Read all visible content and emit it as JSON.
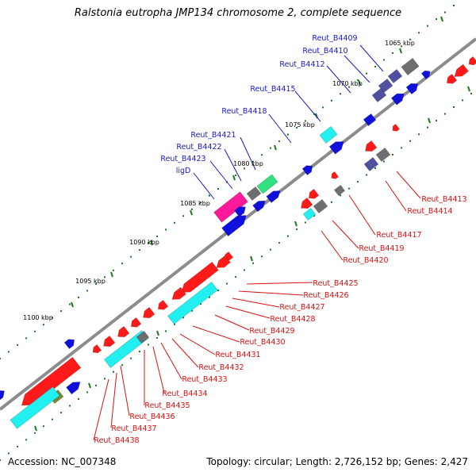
{
  "title": "Ralstonia eutropha JMP134 chromosome 2, complete sequence",
  "footer": {
    "accession": "Accession: NC_007348",
    "summary": "Topology: circular; Length: 2,726,152 bp; Genes: 2,427"
  },
  "colors": {
    "backbone": "#8c8c8c",
    "tick": "#1a7a1a",
    "upper_label": "#1a1acc",
    "lower_label": "#dd1111",
    "red": "#ff1a1a",
    "blue": "#1010dd",
    "cyan": "#22f0f0",
    "slate": "#5050a0",
    "gray": "#6e6e6e",
    "magenta": "#ff1a9a",
    "green": "#33e080",
    "olive": "#778833"
  },
  "kbp_labels": [
    "1065 kbp",
    "1070 kbp",
    "1075 kbp",
    "1080 kbp",
    "1085 kbp",
    "1090 kbp",
    "1095 kbp",
    "1100 kbp"
  ],
  "upper_genes": [
    "Reut_B4409",
    "Reut_B4410",
    "Reut_B4412",
    "Reut_B4415",
    "Reut_B4418",
    "Reut_B4421",
    "Reut_B4422",
    "Reut_B4423",
    "ligD"
  ],
  "lower_genes": [
    "Reut_B4413",
    "Reut_B4414",
    "Reut_B4417",
    "Reut_B4419",
    "Reut_B4420",
    "Reut_B4425",
    "Reut_B4426",
    "Reut_B4427",
    "Reut_B4428",
    "Reut_B4429",
    "Reut_B4430",
    "Reut_B4431",
    "Reut_B4432",
    "Reut_B4433",
    "Reut_B4434",
    "Reut_B4435",
    "Reut_B4436",
    "Reut_B4437",
    "Reut_B4438"
  ]
}
